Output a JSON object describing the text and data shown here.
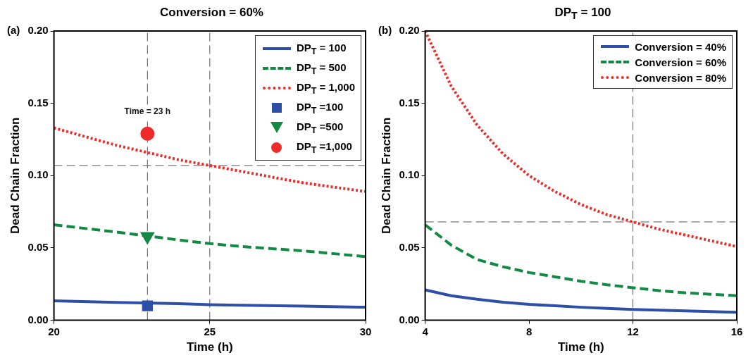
{
  "chart_data": [
    {
      "type": "line",
      "title": "Conversion  = 60%",
      "xlabel": "Time (h)",
      "ylabel": "Dead Chain Fraction",
      "annotations": [
        "(a)",
        {
          "text": "Time = 23 h",
          "x": 23,
          "y": 0.141
        }
      ],
      "xlim": [
        20,
        30
      ],
      "ylim": [
        0,
        0.2
      ],
      "xticks": [
        20,
        25,
        30
      ],
      "yticks": [
        {
          "value": 0,
          "label": "0.00"
        },
        {
          "value": 0.05,
          "label": "0.05"
        },
        {
          "value": 0.1,
          "label": "0.10"
        },
        {
          "value": 0.15,
          "label": "0.15"
        },
        {
          "value": 0.2,
          "label": "0.20"
        }
      ],
      "grid": false,
      "legend": "top right",
      "x": [
        20,
        22,
        24,
        25,
        26,
        28,
        30
      ],
      "series": [
        {
          "name": "DP$_{T}$ = 100",
          "color": "#2e4fa8",
          "line_style": "solid",
          "marker": "none",
          "values": [
            0.0135,
            0.0123,
            0.0115,
            0.0108,
            0.0104,
            0.0098,
            0.009
          ]
        },
        {
          "name": "DP$_{T}$ = 500",
          "color": "#138a43",
          "line_style": "dashed",
          "marker": "none",
          "values": [
            0.066,
            0.061,
            0.0555,
            0.053,
            0.051,
            0.048,
            0.044
          ]
        },
        {
          "name": "DP$_{T}$ = 1,000",
          "color": "#ee2b2b",
          "line_style": "dotted",
          "marker": "none",
          "x": [
            20,
            22,
            23,
            24,
            25,
            26,
            28,
            30
          ],
          "values": [
            0.133,
            0.121,
            0.116,
            0.111,
            0.107,
            0.103,
            0.095,
            0.089
          ]
        },
        {
          "type": "scatter",
          "name": "DP$_{T}$ =100",
          "color": "#2e4fa8",
          "marker": "square",
          "x": [
            23
          ],
          "values": [
            0.01
          ]
        },
        {
          "type": "scatter",
          "name": "DP$_{T}$ =500",
          "color": "#138a43",
          "marker": "triangle",
          "x": [
            23
          ],
          "values": [
            0.058
          ]
        },
        {
          "type": "scatter",
          "name": "DP$_{T}$ =1,000",
          "color": "#ee2b2b",
          "marker": "circle",
          "x": [
            23
          ],
          "values": [
            0.129
          ]
        }
      ],
      "ref_lines": [
        {
          "axis": "x",
          "value": 23,
          "color": "#555555",
          "line_style": "dashed"
        },
        {
          "axis": "x",
          "value": 25,
          "color": "#555555",
          "line_style": "dashed"
        },
        {
          "axis": "y",
          "value": 0.107,
          "color": "#555555",
          "line_style": "dashed"
        }
      ]
    },
    {
      "type": "line",
      "title": "DP$_{T}$ = 100",
      "xlabel": "Time (h)",
      "ylabel": "Dead Chain Fraction",
      "annotations": [
        "(b)"
      ],
      "xlim": [
        4,
        16
      ],
      "ylim": [
        0,
        0.2
      ],
      "xticks": [
        4,
        8,
        12,
        16
      ],
      "yticks": [
        {
          "value": 0,
          "label": "0.00"
        },
        {
          "value": 0.05,
          "label": "0.05"
        },
        {
          "value": 0.1,
          "label": "0.10"
        },
        {
          "value": 0.15,
          "label": "0.15"
        },
        {
          "value": 0.2,
          "label": "0.20"
        }
      ],
      "grid": false,
      "legend": "top right",
      "x": [
        4,
        5,
        6,
        7,
        8,
        9,
        10,
        11,
        12,
        13,
        14,
        15,
        16
      ],
      "series": [
        {
          "name": "Conversion = 40%",
          "color": "#2e4fa8",
          "line_style": "solid",
          "marker": "none",
          "values": [
            0.021,
            0.017,
            0.0145,
            0.0125,
            0.011,
            0.01,
            0.009,
            0.0082,
            0.0075,
            0.007,
            0.0065,
            0.006,
            0.0055
          ]
        },
        {
          "name": "Conversion = 60%",
          "color": "#138a43",
          "line_style": "dashed",
          "marker": "none",
          "values": [
            0.066,
            0.052,
            0.042,
            0.037,
            0.033,
            0.03,
            0.027,
            0.0245,
            0.0225,
            0.0205,
            0.019,
            0.018,
            0.017
          ]
        },
        {
          "name": "Conversion = 80%",
          "color": "#ee2b2b",
          "line_style": "dotted",
          "marker": "none",
          "values": [
            0.2,
            0.162,
            0.135,
            0.115,
            0.1,
            0.089,
            0.08,
            0.073,
            0.068,
            0.063,
            0.059,
            0.055,
            0.051
          ]
        }
      ],
      "ref_lines": [
        {
          "axis": "x",
          "value": 12,
          "color": "#555555",
          "line_style": "dashed"
        },
        {
          "axis": "y",
          "value": 0.068,
          "color": "#555555",
          "line_style": "dashed"
        }
      ]
    }
  ]
}
